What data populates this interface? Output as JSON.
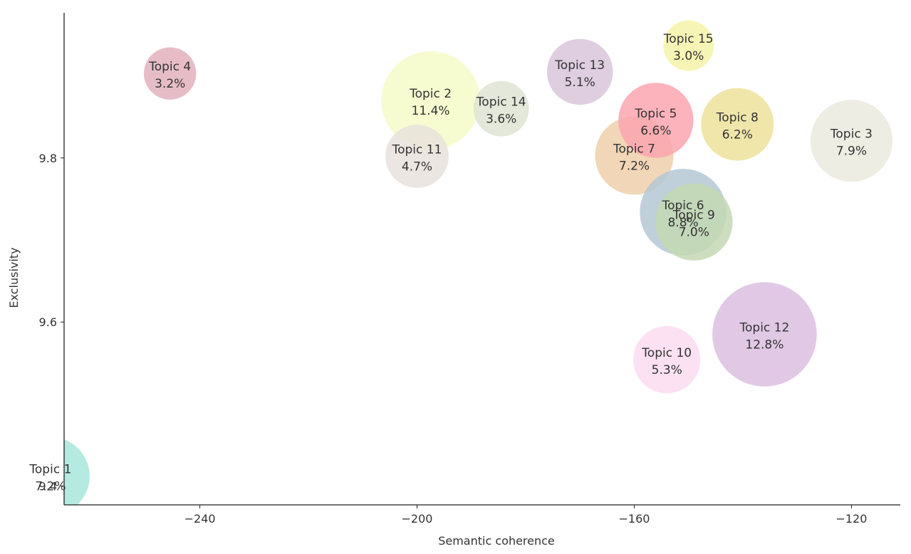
{
  "chart_data": {
    "type": "bubble",
    "title": "",
    "xlabel": "Semantic coherence",
    "ylabel": "Exclusivity",
    "xlim": [
      -265,
      -111
    ],
    "ylim": [
      9.377,
      9.977
    ],
    "x_ticks": [
      -240,
      -200,
      -160,
      -120
    ],
    "y_ticks": [
      9.4,
      9.6,
      9.8
    ],
    "x_tick_labels": [
      "−240",
      "−200",
      "−160",
      "−120"
    ],
    "y_tick_labels": [
      "9.4",
      "9.6",
      "9.8"
    ],
    "grid": false,
    "legend": "none",
    "size_metric": "topic prevalence (%)",
    "points": [
      {
        "name": "Topic 1",
        "pct": "7.2%",
        "x": -267.5,
        "y": 9.412,
        "size": 7.2,
        "color": "#a8e6dc"
      },
      {
        "name": "Topic 2",
        "pct": "11.4%",
        "x": -197.5,
        "y": 9.87,
        "size": 11.4,
        "color": "#f4fbc8"
      },
      {
        "name": "Topic 14",
        "pct": "3.6%",
        "x": -184.5,
        "y": 9.86,
        "size": 3.6,
        "color": "#dee4d3"
      },
      {
        "name": "Topic 4",
        "pct": "3.2%",
        "x": -245.5,
        "y": 9.903,
        "size": 3.2,
        "color": "#e2b2bd"
      },
      {
        "name": "Topic 11",
        "pct": "4.7%",
        "x": -200.0,
        "y": 9.802,
        "size": 4.7,
        "color": "#e7e2dc"
      },
      {
        "name": "Topic 13",
        "pct": "5.1%",
        "x": -170.0,
        "y": 9.905,
        "size": 5.1,
        "color": "#d9c5db"
      },
      {
        "name": "Topic 15",
        "pct": "3.0%",
        "x": -150.0,
        "y": 9.937,
        "size": 3.0,
        "color": "#f6f3a9"
      },
      {
        "name": "Topic 7",
        "pct": "7.2%",
        "x": -160.0,
        "y": 9.803,
        "size": 7.2,
        "color": "#eecfaa"
      },
      {
        "name": "Topic 5",
        "pct": "6.6%",
        "x": -156.0,
        "y": 9.846,
        "size": 6.6,
        "color": "#fba6b0"
      },
      {
        "name": "Topic 8",
        "pct": "6.2%",
        "x": -141.0,
        "y": 9.841,
        "size": 6.2,
        "color": "#ede29b"
      },
      {
        "name": "Topic 3",
        "pct": "7.9%",
        "x": -120.0,
        "y": 9.821,
        "size": 7.9,
        "color": "#ebeade"
      },
      {
        "name": "Topic 6",
        "pct": "8.8%",
        "x": -151.0,
        "y": 9.734,
        "size": 8.8,
        "color": "#b4c8d5"
      },
      {
        "name": "Topic 9",
        "pct": "7.0%",
        "x": -149.0,
        "y": 9.722,
        "size": 7.0,
        "color": "#c3d8b3"
      },
      {
        "name": "Topic 12",
        "pct": "12.8%",
        "x": -136.0,
        "y": 9.585,
        "size": 12.8,
        "color": "#dcbfe2"
      },
      {
        "name": "Topic 10",
        "pct": "5.3%",
        "x": -154.0,
        "y": 9.554,
        "size": 5.3,
        "color": "#fbdcf0"
      }
    ]
  }
}
